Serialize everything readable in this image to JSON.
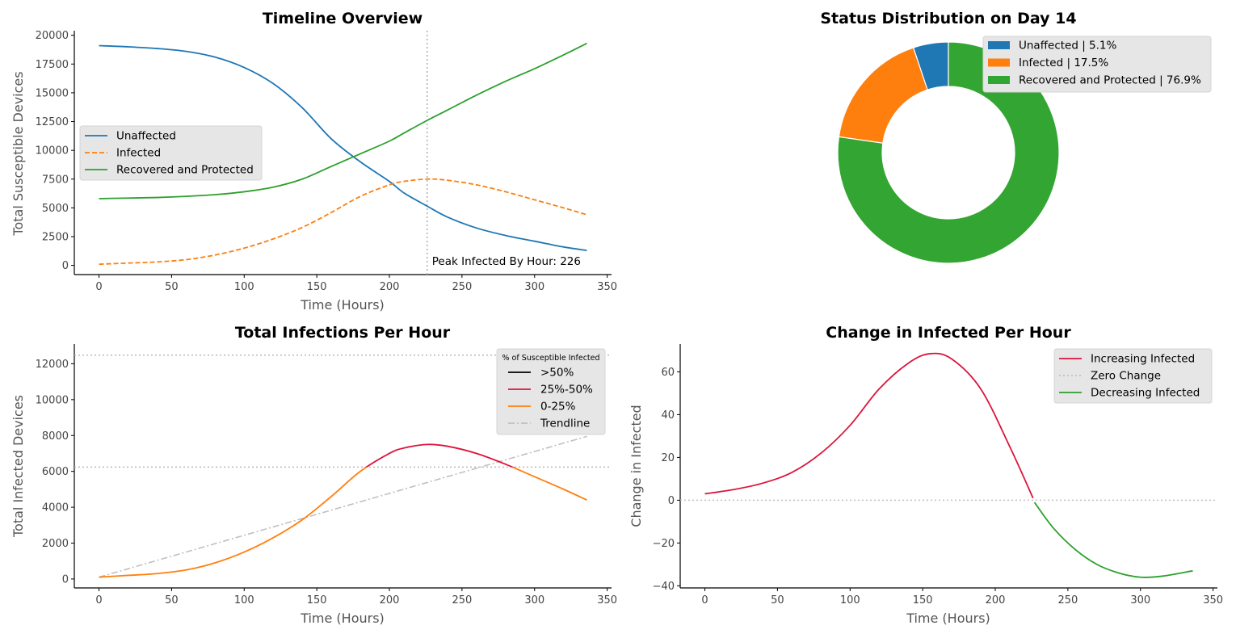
{
  "chart_data": [
    {
      "id": "timeline",
      "type": "line",
      "title": "Timeline Overview",
      "xlabel": "Time (Hours)",
      "ylabel": "Total Susceptible Devices",
      "xlim": [
        -17,
        353
      ],
      "ylim": [
        -800,
        20400
      ],
      "xticks": [
        0,
        50,
        100,
        150,
        200,
        250,
        300,
        350
      ],
      "yticks": [
        0,
        2500,
        5000,
        7500,
        10000,
        12500,
        15000,
        17500,
        20000
      ],
      "legend": "center-left",
      "series": [
        {
          "name": "Unaffected",
          "color": "#1f77b4",
          "style": "solid",
          "x": [
            0,
            20,
            40,
            60,
            80,
            100,
            120,
            140,
            160,
            180,
            200,
            210,
            226,
            240,
            260,
            280,
            300,
            320,
            336
          ],
          "y": [
            19100,
            19000,
            18850,
            18600,
            18100,
            17200,
            15800,
            13700,
            11000,
            9000,
            7300,
            6300,
            5150,
            4200,
            3250,
            2600,
            2100,
            1600,
            1300
          ]
        },
        {
          "name": "Infected",
          "color": "#ff7f0e",
          "style": "dashed",
          "x": [
            0,
            20,
            40,
            60,
            80,
            100,
            120,
            140,
            160,
            180,
            200,
            210,
            226,
            240,
            260,
            280,
            300,
            320,
            336
          ],
          "y": [
            100,
            200,
            300,
            500,
            900,
            1500,
            2300,
            3300,
            4600,
            6000,
            7000,
            7300,
            7500,
            7400,
            7000,
            6400,
            5700,
            5000,
            4400
          ]
        },
        {
          "name": "Recovered and Protected",
          "color": "#2ca02c",
          "style": "solid",
          "x": [
            0,
            20,
            40,
            60,
            80,
            100,
            120,
            140,
            160,
            180,
            200,
            210,
            226,
            240,
            260,
            280,
            300,
            320,
            336
          ],
          "y": [
            5800,
            5850,
            5900,
            6000,
            6150,
            6400,
            6800,
            7500,
            8600,
            9700,
            10800,
            11500,
            12600,
            13500,
            14800,
            16000,
            17100,
            18300,
            19300
          ]
        }
      ],
      "vline": {
        "x": 226,
        "color": "#b0b0b0"
      },
      "annotation": "Peak Infected By Hour: 226"
    },
    {
      "id": "status",
      "type": "pie",
      "title": "Status Distribution on Day 14",
      "legend": "top-right",
      "slices": [
        {
          "label": "Unaffected | 5.1%",
          "value": 5.1,
          "color": "#1f77b4"
        },
        {
          "label": "Infected | 17.5%",
          "value": 17.5,
          "color": "#ff7f0e"
        },
        {
          "label": "Recovered and Protected | 76.9%",
          "value": 76.9,
          "color": "#33a532"
        }
      ]
    },
    {
      "id": "infections",
      "type": "line",
      "title": "Total Infections Per Hour",
      "xlabel": "Time (Hours)",
      "ylabel": "Total Infected Devices",
      "xlim": [
        -17,
        353
      ],
      "ylim": [
        -500,
        13100
      ],
      "xticks": [
        0,
        50,
        100,
        150,
        200,
        250,
        300,
        350
      ],
      "yticks": [
        0,
        2000,
        4000,
        6000,
        8000,
        10000,
        12000
      ],
      "hlines": [
        12480,
        6240
      ],
      "color_threshold": 6240,
      "legend": "top-right",
      "legend_title": "% of Susceptible Infected",
      "legend_items": [
        {
          "name": ">50%",
          "color": "#000000",
          "style": "solid"
        },
        {
          "name": "25%-50%",
          "color": "#dc143c",
          "style": "solid"
        },
        {
          "name": "0-25%",
          "color": "#ff7f0e",
          "style": "solid"
        },
        {
          "name": "Trendline",
          "color": "#c0c0c0",
          "style": "dashdot"
        }
      ],
      "series": [
        {
          "name": "Infected",
          "x": [
            0,
            20,
            40,
            60,
            80,
            100,
            120,
            140,
            160,
            180,
            200,
            210,
            226,
            240,
            260,
            280,
            300,
            320,
            336
          ],
          "y": [
            100,
            200,
            300,
            500,
            900,
            1500,
            2300,
            3300,
            4600,
            6000,
            7000,
            7300,
            7500,
            7400,
            7000,
            6400,
            5700,
            5000,
            4400
          ]
        }
      ],
      "trendline": {
        "x": [
          0,
          336
        ],
        "y": [
          100,
          7950
        ]
      }
    },
    {
      "id": "change",
      "type": "line",
      "title": "Change in Infected Per Hour",
      "xlabel": "Time (Hours)",
      "ylabel": "Change in Infected",
      "xlim": [
        -17,
        353
      ],
      "ylim": [
        -41,
        73
      ],
      "xticks": [
        0,
        50,
        100,
        150,
        200,
        250,
        300,
        350
      ],
      "yticks": [
        -40,
        -20,
        0,
        20,
        40,
        60
      ],
      "legend": "top-right",
      "series": [
        {
          "name": "Increasing Infected",
          "color": "#dc143c",
          "style": "solid",
          "x": [
            0,
            20,
            40,
            60,
            80,
            100,
            120,
            140,
            155,
            170,
            190,
            210,
            226
          ],
          "y": [
            3,
            5,
            8,
            13,
            22,
            35,
            52,
            64,
            68.5,
            66,
            52,
            25,
            1
          ]
        },
        {
          "name": "Zero Change",
          "color": "#c0c0c0",
          "style": "dotted",
          "hline": 0
        },
        {
          "name": "Decreasing  Infected",
          "color": "#2ca02c",
          "style": "solid",
          "x": [
            227,
            240,
            255,
            270,
            285,
            300,
            315,
            336
          ],
          "y": [
            -1,
            -13,
            -23,
            -30,
            -34,
            -36,
            -35.5,
            -33
          ]
        }
      ]
    }
  ]
}
